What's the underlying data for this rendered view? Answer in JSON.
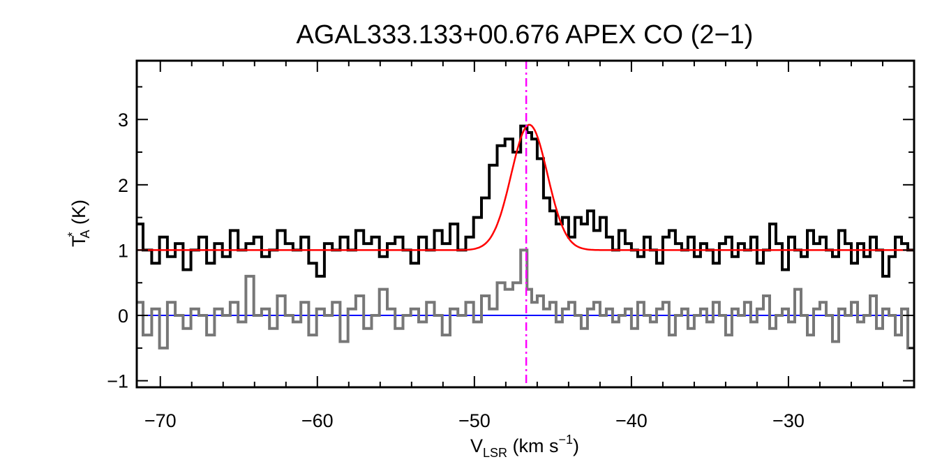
{
  "chart_data": {
    "type": "line",
    "title": "AGAL333.133+00.676  APEX CO (2−1)",
    "xlabel": {
      "main": "V",
      "sub": "LSR",
      "rest": " (km s",
      "sup": "−1",
      "end": ")"
    },
    "ylabel": {
      "main": "T",
      "sup": "*",
      "sub": "A",
      "rest": " (K)"
    },
    "xlim": [
      -71.5,
      -22.0
    ],
    "ylim": [
      -1.1,
      3.9
    ],
    "x_ticks": [
      -70,
      -60,
      -50,
      -40,
      -30
    ],
    "x_tick_labels": [
      "−70",
      "−60",
      "−50",
      "−40",
      "−30"
    ],
    "y_ticks": [
      -1,
      0,
      1,
      2,
      3
    ],
    "y_tick_labels": [
      "−1",
      "0",
      "1",
      "2",
      "3"
    ],
    "vline_x": -46.7,
    "baseline_y": 0,
    "colors": {
      "spectrum": "#000000",
      "residual": "#777777",
      "fit": "#ff0000",
      "baseline": "#0000ff",
      "vline": "#ff00ff"
    },
    "series": [
      {
        "x": [
          -71.4,
          -70.8,
          -70.3,
          -69.8,
          -69.3,
          -68.8,
          -68.3,
          -67.8,
          -67.3,
          -66.8,
          -66.3,
          -65.8,
          -65.3,
          -64.8,
          -64.3,
          -63.8,
          -63.3,
          -62.8,
          -62.3,
          -61.8,
          -61.3,
          -60.8,
          -60.3,
          -59.8,
          -59.3,
          -58.8,
          -58.3,
          -57.8,
          -57.3,
          -56.8,
          -56.3,
          -55.8,
          -55.3,
          -54.8,
          -54.3,
          -53.8,
          -53.3,
          -52.8,
          -52.3,
          -51.8,
          -51.3,
          -50.8,
          -50.3,
          -49.8,
          -49.3,
          -48.8,
          -48.3,
          -47.8,
          -47.3,
          -46.8,
          -46.5,
          -46.2,
          -45.8,
          -45.4,
          -45.0,
          -44.6,
          -44.2,
          -43.8,
          -43.4,
          -43.0,
          -42.6,
          -42.2,
          -41.8,
          -41.4,
          -41.0,
          -40.6,
          -40.2,
          -39.8,
          -39.4,
          -39.0,
          -38.6,
          -38.2,
          -37.8,
          -37.4,
          -37.0,
          -36.6,
          -36.2,
          -35.8,
          -35.4,
          -35.0,
          -34.6,
          -34.2,
          -33.8,
          -33.4,
          -33.0,
          -32.6,
          -32.2,
          -31.8,
          -31.4,
          -31.0,
          -30.6,
          -30.2,
          -29.8,
          -29.4,
          -29.0,
          -28.6,
          -28.2,
          -27.8,
          -27.4,
          -27.0,
          -26.6,
          -26.2,
          -25.8,
          -25.4,
          -25.0,
          -24.6,
          -24.2,
          -23.8,
          -23.4,
          -23.0,
          -22.6,
          -22.2
        ],
        "y": [
          1.4,
          1.0,
          0.8,
          1.2,
          0.9,
          1.1,
          0.7,
          1.0,
          1.2,
          0.8,
          1.1,
          0.9,
          1.3,
          1.0,
          1.1,
          1.2,
          0.9,
          1.0,
          1.3,
          1.1,
          1.0,
          1.2,
          0.8,
          0.6,
          1.1,
          1.0,
          1.2,
          1.0,
          1.3,
          1.1,
          1.2,
          0.9,
          1.1,
          1.2,
          1.0,
          0.8,
          1.2,
          1.0,
          1.3,
          1.1,
          1.4,
          1.0,
          1.2,
          1.5,
          1.8,
          2.3,
          2.6,
          2.7,
          2.5,
          2.9,
          2.8,
          2.7,
          2.4,
          1.8,
          1.6,
          1.4,
          1.5,
          1.2,
          1.5,
          1.4,
          1.6,
          1.3,
          1.5,
          1.2,
          1.0,
          1.3,
          1.1,
          1.0,
          0.9,
          1.2,
          1.0,
          0.8,
          1.2,
          1.3,
          1.1,
          1.0,
          1.2,
          0.9,
          1.1,
          1.0,
          0.8,
          1.1,
          1.2,
          0.9,
          1.1,
          1.0,
          1.2,
          0.8,
          1.0,
          1.4,
          1.1,
          0.7,
          1.2,
          1.0,
          0.9,
          1.3,
          1.1,
          1.2,
          1.0,
          0.9,
          1.3,
          1.1,
          0.8,
          1.1,
          0.9,
          1.2,
          1.0,
          0.6,
          0.9,
          1.2,
          1.1,
          1.0
        ]
      },
      {
        "x": [
          -71.4,
          -70.8,
          -70.3,
          -69.8,
          -69.3,
          -68.8,
          -68.3,
          -67.8,
          -67.3,
          -66.8,
          -66.3,
          -65.8,
          -65.3,
          -64.8,
          -64.3,
          -63.8,
          -63.3,
          -62.8,
          -62.3,
          -61.8,
          -61.3,
          -60.8,
          -60.3,
          -59.8,
          -59.3,
          -58.8,
          -58.3,
          -57.8,
          -57.3,
          -56.8,
          -56.3,
          -55.8,
          -55.3,
          -54.8,
          -54.3,
          -53.8,
          -53.3,
          -52.8,
          -52.3,
          -51.8,
          -51.3,
          -50.8,
          -50.3,
          -49.8,
          -49.3,
          -48.8,
          -48.3,
          -47.8,
          -47.3,
          -46.8,
          -46.5,
          -46.2,
          -45.8,
          -45.4,
          -45.0,
          -44.6,
          -44.2,
          -43.8,
          -43.4,
          -43.0,
          -42.6,
          -42.2,
          -41.8,
          -41.4,
          -41.0,
          -40.6,
          -40.2,
          -39.8,
          -39.4,
          -39.0,
          -38.6,
          -38.2,
          -37.8,
          -37.4,
          -37.0,
          -36.6,
          -36.2,
          -35.8,
          -35.4,
          -35.0,
          -34.6,
          -34.2,
          -33.8,
          -33.4,
          -33.0,
          -32.6,
          -32.2,
          -31.8,
          -31.4,
          -31.0,
          -30.6,
          -30.2,
          -29.8,
          -29.4,
          -29.0,
          -28.6,
          -28.2,
          -27.8,
          -27.4,
          -27.0,
          -26.6,
          -26.2,
          -25.8,
          -25.4,
          -25.0,
          -24.6,
          -24.2,
          -23.8,
          -23.4,
          -23.0,
          -22.6,
          -22.2
        ],
        "y": [
          0.2,
          -0.3,
          0.1,
          -0.5,
          0.2,
          0.0,
          -0.2,
          0.1,
          0.0,
          -0.3,
          0.1,
          0.0,
          0.2,
          -0.1,
          0.6,
          0.0,
          0.1,
          -0.2,
          0.3,
          0.0,
          -0.1,
          0.2,
          -0.3,
          0.1,
          0.0,
          0.2,
          -0.4,
          0.1,
          0.3,
          -0.2,
          0.0,
          0.4,
          0.1,
          -0.2,
          0.0,
          0.1,
          -0.1,
          0.2,
          0.0,
          -0.3,
          0.1,
          0.0,
          0.2,
          -0.1,
          0.3,
          0.1,
          0.5,
          0.4,
          0.5,
          1.0,
          0.4,
          0.2,
          0.3,
          0.1,
          0.2,
          -0.1,
          0.1,
          0.2,
          0.0,
          -0.2,
          0.1,
          0.2,
          0.0,
          0.1,
          -0.1,
          0.0,
          0.1,
          -0.2,
          0.2,
          0.0,
          -0.1,
          0.1,
          0.2,
          -0.3,
          0.0,
          0.1,
          -0.2,
          0.0,
          0.1,
          -0.1,
          0.2,
          0.0,
          -0.3,
          0.1,
          0.0,
          0.2,
          -0.1,
          0.1,
          0.3,
          -0.2,
          0.0,
          0.1,
          -0.1,
          0.4,
          0.0,
          -0.3,
          0.1,
          0.2,
          0.0,
          -0.4,
          0.1,
          0.0,
          0.2,
          -0.1,
          0.0,
          0.3,
          -0.2,
          0.1,
          0.0,
          -0.3,
          0.1,
          -0.5
        ]
      },
      {
        "offset": 1.0,
        "amplitude": 1.92,
        "center": -46.5,
        "sigma": 1.15
      }
    ]
  }
}
